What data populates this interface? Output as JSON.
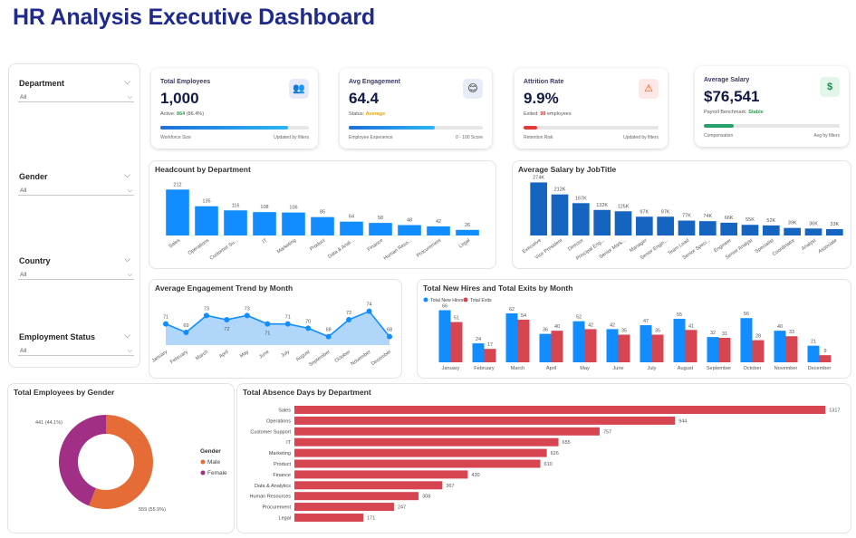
{
  "header": {
    "title": "HR Analysis Executive Dashboard"
  },
  "slicers": [
    {
      "label": "Department",
      "value": "All"
    },
    {
      "label": "Gender",
      "value": "All"
    },
    {
      "label": "Country",
      "value": "All"
    },
    {
      "label": "Employment Status",
      "value": "All"
    }
  ],
  "kpis": [
    {
      "title": "Total Employees",
      "value": "1,000",
      "sub_prefix": "Active: ",
      "sub_highlight": "864",
      "sub_suffix": " (86.4%)",
      "highlight_color": "#2e9e4f",
      "progress": 0.86,
      "bar_color": "#1e88e5",
      "foot_left": "Workforce Size",
      "foot_right": "Updated by filters",
      "icon": "people-icon",
      "icon_glyph": "👥",
      "icon_bg": "#e6e9f8"
    },
    {
      "title": "Avg Engagement",
      "value": "64.4",
      "sub_prefix": "Status: ",
      "sub_highlight": "Average",
      "sub_suffix": "",
      "highlight_color": "#f0a400",
      "progress": 0.644,
      "bar_color": "#1e88e5",
      "foot_left": "Employee Experience",
      "foot_right": "0 - 100 Score",
      "icon": "smiley-icon",
      "icon_glyph": "😊",
      "icon_bg": "#e6ecf8"
    },
    {
      "title": "Attrition Rate",
      "value": "9.9%",
      "sub_prefix": "Exited: ",
      "sub_highlight": "99",
      "sub_suffix": " employees",
      "highlight_color": "#d32f2f",
      "progress": 0.099,
      "bar_color": "#e53935",
      "foot_left": "Retention Risk",
      "foot_right": "Updated by filters",
      "icon": "warning-icon",
      "icon_glyph": "⚠️",
      "icon_bg": "#fde7e7"
    },
    {
      "title": "Average Salary",
      "value": "$76,541",
      "sub_prefix": "Payroll Benchmark: ",
      "sub_highlight": "Stable",
      "sub_suffix": "",
      "highlight_color": "#2e9e4f",
      "progress": 0.22,
      "bar_color": "#26a269",
      "foot_left": "Compensation",
      "foot_right": "Avg by filters",
      "icon": "dollar-icon",
      "icon_glyph": "$",
      "icon_bg": "#e3f6ea"
    }
  ],
  "chart_data": [
    {
      "id": "headcount",
      "type": "bar",
      "title": "Headcount by Department",
      "categories": [
        "Sales",
        "Operations",
        "Customer Su...",
        "IT",
        "Marketing",
        "Product",
        "Data & Anal...",
        "Finance",
        "Human Reso...",
        "Procurement",
        "Legal"
      ],
      "values": [
        212,
        135,
        116,
        108,
        106,
        85,
        64,
        58,
        48,
        42,
        26
      ],
      "labels": [
        "212",
        "135",
        "116",
        "108",
        "106",
        "85",
        "64",
        "58",
        "48",
        "42",
        "26"
      ],
      "color": "#118dff",
      "ylim": [
        0,
        230
      ]
    },
    {
      "id": "salary",
      "type": "bar",
      "title": "Average Salary by JobTitle",
      "categories": [
        "Executive",
        "Vice President",
        "Director",
        "Principal Eng...",
        "Senior Mark...",
        "Manager",
        "Senior Engin...",
        "Team Lead",
        "Senior Speci...",
        "Engineer",
        "Senior Analyst",
        "Specialist",
        "Coordinator",
        "Analyst",
        "Associate"
      ],
      "values": [
        274,
        212,
        167,
        132,
        125,
        97,
        97,
        77,
        74,
        66,
        55,
        52,
        39,
        36,
        33
      ],
      "labels": [
        "274K",
        "212K",
        "167K",
        "132K",
        "125K",
        "97K",
        "97K",
        "77K",
        "74K",
        "66K",
        "55K",
        "52K",
        "39K",
        "36K",
        "33K"
      ],
      "color": "#1565c0",
      "ylim": [
        0,
        290
      ]
    },
    {
      "id": "engagement",
      "type": "area",
      "title": "Average Engagement Trend by Month",
      "categories": [
        "January",
        "February",
        "March",
        "April",
        "May",
        "June",
        "July",
        "August",
        "September",
        "October",
        "November",
        "December"
      ],
      "values": [
        71,
        69,
        73,
        72,
        73,
        71,
        71,
        70,
        68,
        72,
        74,
        68
      ],
      "color": "#118dff",
      "ylim": [
        66,
        75
      ]
    },
    {
      "id": "hires",
      "type": "bar",
      "title": "Total New Hires and Total Exits by Month",
      "categories": [
        "January",
        "February",
        "March",
        "April",
        "May",
        "June",
        "July",
        "August",
        "September",
        "October",
        "November",
        "December"
      ],
      "series": [
        {
          "name": "Total New Hires",
          "values": [
            66,
            24,
            62,
            36,
            52,
            42,
            47,
            55,
            32,
            56,
            40,
            21
          ],
          "color": "#118dff"
        },
        {
          "name": "Total Exits",
          "values": [
            51,
            17,
            54,
            40,
            42,
            35,
            35,
            41,
            31,
            28,
            33,
            9
          ],
          "color": "#d64550"
        }
      ],
      "ylim": [
        0,
        70
      ]
    },
    {
      "id": "gender",
      "type": "pie",
      "title": "Total Employees by Gender",
      "legend_title": "Gender",
      "slices": [
        {
          "name": "Male",
          "value": 559,
          "label": "559 (55.9%)",
          "color": "#e66c37"
        },
        {
          "name": "Female",
          "value": 441,
          "label": "441 (44.1%)",
          "color": "#a02f85"
        }
      ]
    },
    {
      "id": "absence",
      "type": "bar",
      "title": "Total Absence Days by Department",
      "categories": [
        "Sales",
        "Operations",
        "Customer Support",
        "IT",
        "Marketing",
        "Product",
        "Finance",
        "Data & Analytics",
        "Human Resources",
        "Procurement",
        "Legal"
      ],
      "values": [
        1317,
        944,
        757,
        655,
        626,
        610,
        430,
        367,
        308,
        247,
        171
      ],
      "color": "#d64550",
      "xlim": [
        0,
        1330
      ]
    }
  ]
}
